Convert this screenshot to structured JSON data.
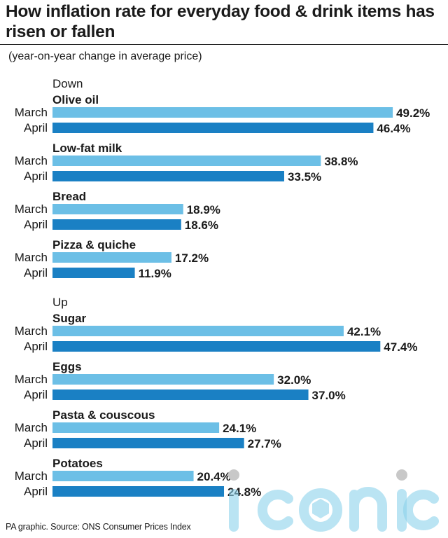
{
  "title": "How inflation rate for everyday food & drink items has risen or fallen",
  "subtitle": "(year-on-year change in average price)",
  "source": "PA graphic. Source: ONS Consumer Prices Index",
  "watermark": "iconic",
  "colors": {
    "march": "#6cbfe6",
    "april": "#1a80c4",
    "text": "#1a1a1a"
  },
  "chart_data": {
    "type": "bar",
    "orientation": "horizontal",
    "unit": "%",
    "series_labels": [
      "March",
      "April"
    ],
    "groups": [
      {
        "section": "Down",
        "items": [
          {
            "name": "Olive oil",
            "values": [
              49.2,
              46.4
            ]
          },
          {
            "name": "Low-fat milk",
            "values": [
              38.8,
              33.5
            ]
          },
          {
            "name": "Bread",
            "values": [
              18.9,
              18.6
            ]
          },
          {
            "name": "Pizza & quiche",
            "values": [
              17.2,
              11.9
            ]
          }
        ]
      },
      {
        "section": "Up",
        "items": [
          {
            "name": "Sugar",
            "values": [
              42.1,
              47.4
            ]
          },
          {
            "name": "Eggs",
            "values": [
              32.0,
              37.0
            ]
          },
          {
            "name": "Pasta & couscous",
            "values": [
              24.1,
              27.7
            ]
          },
          {
            "name": "Potatoes",
            "values": [
              20.4,
              24.8
            ]
          }
        ]
      }
    ]
  }
}
